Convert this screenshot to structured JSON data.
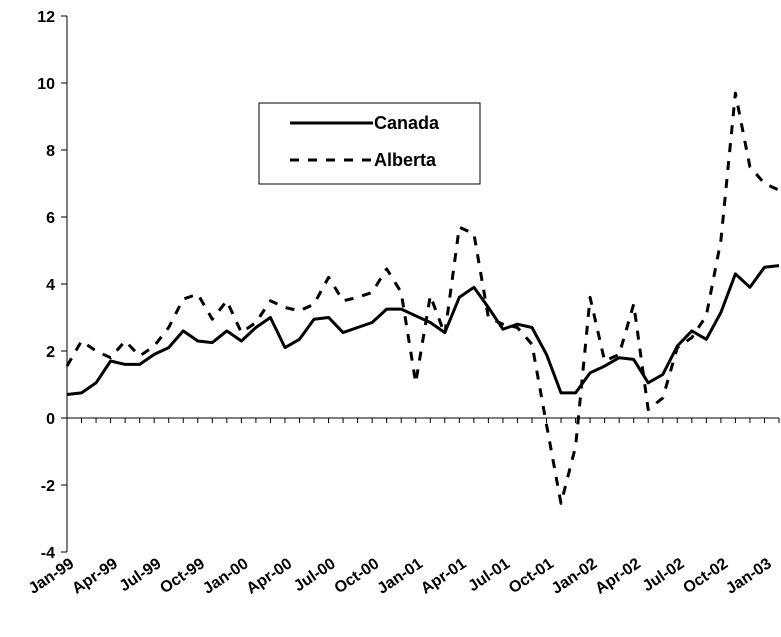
{
  "chart_data": {
    "type": "line",
    "title": "",
    "xlabel": "",
    "ylabel": "",
    "ylim": [
      -4,
      12
    ],
    "yticks": [
      -4,
      -2,
      0,
      2,
      4,
      6,
      8,
      10,
      12
    ],
    "grid": false,
    "legend_position": "upper-left inside plot",
    "x": [
      "Jan-99",
      "Feb-99",
      "Mar-99",
      "Apr-99",
      "May-99",
      "Jun-99",
      "Jul-99",
      "Aug-99",
      "Sep-99",
      "Oct-99",
      "Nov-99",
      "Dec-99",
      "Jan-00",
      "Feb-00",
      "Mar-00",
      "Apr-00",
      "May-00",
      "Jun-00",
      "Jul-00",
      "Aug-00",
      "Sep-00",
      "Oct-00",
      "Nov-00",
      "Dec-00",
      "Jan-01",
      "Feb-01",
      "Mar-01",
      "Apr-01",
      "May-01",
      "Jun-01",
      "Jul-01",
      "Aug-01",
      "Sep-01",
      "Oct-01",
      "Nov-01",
      "Dec-01",
      "Jan-02",
      "Feb-02",
      "Mar-02",
      "Apr-02",
      "May-02",
      "Jun-02",
      "Jul-02",
      "Aug-02",
      "Sep-02",
      "Oct-02",
      "Nov-02",
      "Dec-02",
      "Jan-03",
      "Feb-03"
    ],
    "xtick_labels": [
      "Jan-99",
      "Apr-99",
      "Jul-99",
      "Oct-99",
      "Jan-00",
      "Apr-00",
      "Jul-00",
      "Oct-00",
      "Jan-01",
      "Apr-01",
      "Jul-01",
      "Oct-01",
      "Jan-02",
      "Apr-02",
      "Jul-02",
      "Oct-02",
      "Jan-03"
    ],
    "series": [
      {
        "name": "Canada",
        "style": "solid",
        "color": "#000000",
        "values": [
          0.7,
          0.75,
          1.05,
          1.7,
          1.6,
          1.6,
          1.9,
          2.1,
          2.6,
          2.3,
          2.25,
          2.6,
          2.3,
          2.7,
          3.0,
          2.1,
          2.35,
          2.95,
          3.0,
          2.55,
          2.7,
          2.85,
          3.25,
          3.25,
          3.05,
          2.85,
          2.55,
          3.6,
          3.9,
          3.3,
          2.65,
          2.8,
          2.7,
          1.9,
          0.75,
          0.75,
          1.35,
          1.55,
          1.8,
          1.75,
          1.05,
          1.3,
          2.15,
          2.6,
          2.35,
          3.15,
          4.3,
          3.9,
          4.5,
          4.55
        ]
      },
      {
        "name": "Alberta",
        "style": "dashed",
        "color": "#000000",
        "values": [
          1.55,
          2.3,
          2.0,
          1.8,
          2.3,
          1.85,
          2.15,
          2.7,
          3.55,
          3.7,
          2.95,
          3.5,
          2.55,
          2.85,
          3.5,
          3.3,
          3.2,
          3.4,
          4.2,
          3.5,
          3.6,
          3.75,
          4.45,
          3.75,
          1.05,
          3.65,
          2.5,
          5.7,
          5.5,
          3.0,
          2.8,
          2.7,
          2.2,
          -0.2,
          -2.55,
          -0.85,
          3.6,
          1.7,
          1.9,
          3.4,
          0.25,
          0.6,
          2.1,
          2.4,
          3.05,
          5.3,
          9.7,
          7.5,
          7.0,
          6.8
        ]
      }
    ]
  }
}
